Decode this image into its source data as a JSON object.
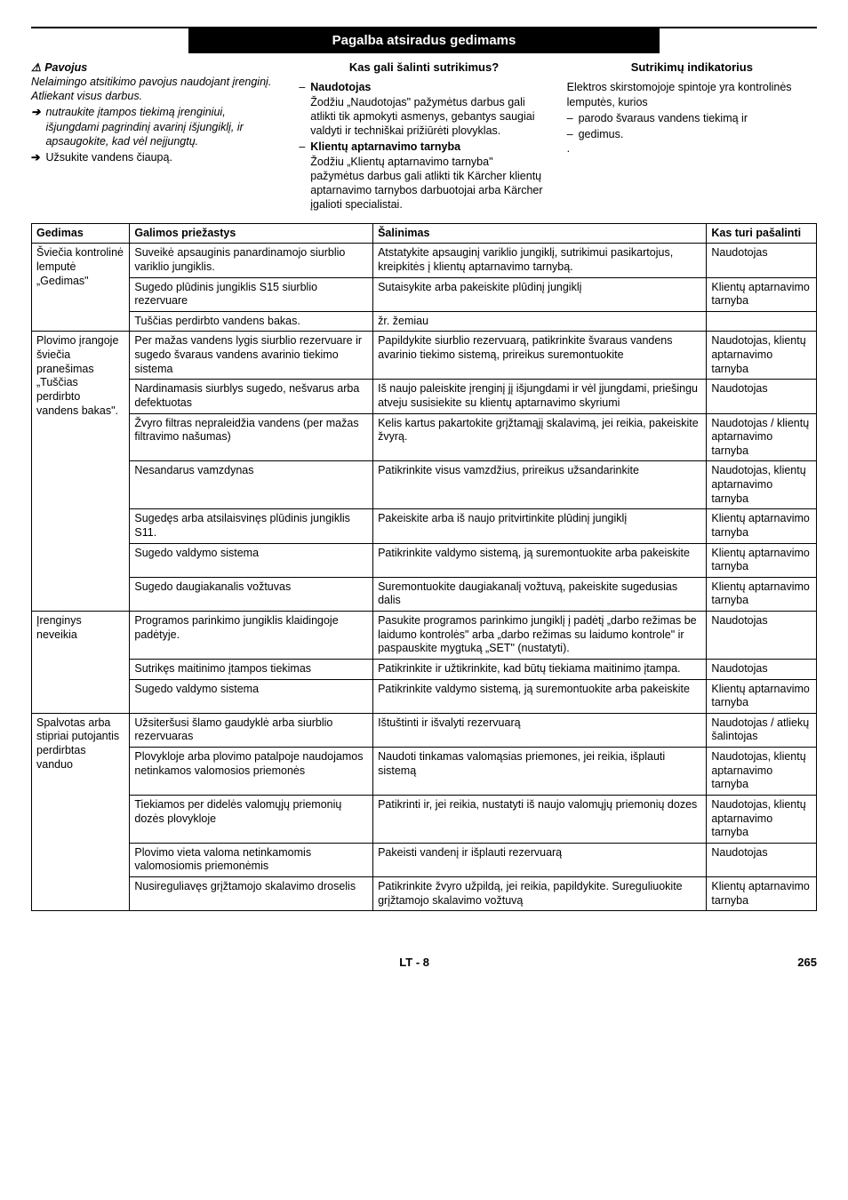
{
  "section_title": "Pagalba atsiradus gedimams",
  "danger": {
    "heading": "Pavojus",
    "intro": "Nelaimingo atsitikimo pavojus naudojant įrenginį. Atliekant visus darbus.",
    "bullets": [
      "nutraukite įtampos tiekimą įrenginiui, išjungdami pagrindinį avarinį išjungiklį, ir apsaugokite, kad vėl neįjungtų.",
      "Užsukite vandens čiaupą."
    ]
  },
  "who": {
    "heading": "Kas gali šalinti sutrikimus?",
    "items": [
      {
        "label": "Naudotojas",
        "text": "Žodžiu „Naudotojas\" pažymėtus darbus gali atlikti tik apmokyti asmenys, gebantys saugiai valdyti ir techniškai prižiūrėti plovyklas."
      },
      {
        "label": "Klientų aptarnavimo tarnyba",
        "text": "Žodžiu „Klientų aptarnavimo tarnyba\" pažymėtus darbus gali atlikti tik Kärcher klientų aptarnavimo tarnybos darbuotojai arba Kärcher įgalioti specialistai."
      }
    ]
  },
  "indicator": {
    "heading": "Sutrikimų indikatorius",
    "intro": "Elektros skirstomojoje spintoje yra kontrolinės lemputės, kurios",
    "bullets": [
      "parodo švaraus vandens tiekimą ir",
      "gedimus."
    ],
    "dot": "."
  },
  "table": {
    "headers": [
      "Gedimas",
      "Galimos priežastys",
      "Šalinimas",
      "Kas turi pašalinti"
    ],
    "g1": {
      "fault": "Šviečia kontrolinė lemputė „Gedimas\"",
      "r1": {
        "cause": "Suveikė apsauginis panardinamojo siurblio variklio jungiklis.",
        "remedy": "Atstatykite apsauginį variklio jungiklį, sutrikimui pasikartojus, kreipkitės į klientų aptarnavimo tarnybą.",
        "who": "Naudotojas"
      },
      "r2": {
        "cause": "Sugedo plūdinis jungiklis S15 siurblio rezervuare",
        "remedy": "Sutaisykite arba pakeiskite plūdinį jungiklį",
        "who": "Klientų aptarnavimo tarnyba"
      },
      "r3": {
        "cause": "Tuščias perdirbto vandens bakas.",
        "remedy": "žr. žemiau",
        "who": ""
      }
    },
    "g2": {
      "fault": "Plovimo įrangoje šviečia pranešimas „Tuščias perdirbto vandens bakas\".",
      "r1": {
        "cause": "Per mažas vandens lygis siurblio rezervuare ir sugedo švaraus vandens avarinio tiekimo sistema",
        "remedy": "Papildykite siurblio rezervuarą, patikrinkite švaraus vandens avarinio tiekimo sistemą, prireikus suremontuokite",
        "who": "Naudotojas, klientų aptarnavimo tarnyba"
      },
      "r2": {
        "cause": "Nardinamasis siurblys sugedo, nešvarus arba defektuotas",
        "remedy": "Iš naujo paleiskite įrenginį jį išjungdami ir vėl įjungdami, priešingu atveju susisiekite su klientų aptarnavimo skyriumi",
        "who": "Naudotojas"
      },
      "r3": {
        "cause": "Žvyro filtras nepraleidžia vandens (per mažas filtravimo našumas)",
        "remedy": "Kelis kartus pakartokite grįžtamąjį skalavimą, jei reikia, pakeiskite žvyrą.",
        "who": "Naudotojas / klientų aptarnavimo tarnyba"
      },
      "r4": {
        "cause": "Nesandarus vamzdynas",
        "remedy": "Patikrinkite visus vamzdžius, prireikus užsandarinkite",
        "who": "Naudotojas, klientų aptarnavimo tarnyba"
      },
      "r5": {
        "cause": "Sugedęs arba atsilaisvinęs plūdinis jungiklis S11.",
        "remedy": "Pakeiskite arba iš naujo pritvirtinkite plūdinį jungiklį",
        "who": "Klientų aptarnavimo tarnyba"
      },
      "r6": {
        "cause": "Sugedo valdymo sistema",
        "remedy": "Patikrinkite valdymo sistemą, ją suremontuokite arba pakeiskite",
        "who": "Klientų aptarnavimo tarnyba"
      },
      "r7": {
        "cause": "Sugedo daugiakanalis vožtuvas",
        "remedy": "Suremontuokite daugiakanalį vožtuvą, pakeiskite sugedusias dalis",
        "who": "Klientų aptarnavimo tarnyba"
      }
    },
    "g3": {
      "fault": "Įrenginys neveikia",
      "r1": {
        "cause": "Programos parinkimo jungiklis klaidingoje padėtyje.",
        "remedy": "Pasukite programos parinkimo jungiklį į padėtį „darbo režimas be laidumo kontrolės\" arba „darbo režimas su laidumo kontrole\" ir paspauskite mygtuką „SET\" (nustatyti).",
        "who": "Naudotojas"
      },
      "r2": {
        "cause": "Sutrikęs maitinimo įtampos tiekimas",
        "remedy": "Patikrinkite ir užtikrinkite, kad būtų tiekiama maitinimo įtampa.",
        "who": "Naudotojas"
      },
      "r3": {
        "cause": "Sugedo valdymo sistema",
        "remedy": "Patikrinkite valdymo sistemą, ją suremontuokite arba pakeiskite",
        "who": "Klientų aptarnavimo tarnyba"
      }
    },
    "g4": {
      "fault": "Spalvotas arba stipriai putojantis perdirbtas vanduo",
      "r1": {
        "cause": "Užsiteršusi šlamo gaudyklė arba siurblio rezervuaras",
        "remedy": "Ištuštinti ir išvalyti rezervuarą",
        "who": "Naudotojas / atliekų šalintojas"
      },
      "r2": {
        "cause": "Plovykloje arba plovimo patalpoje naudojamos netinkamos valomosios priemonės",
        "remedy": "Naudoti tinkamas valomąsias priemones, jei reikia, išplauti sistemą",
        "who": "Naudotojas, klientų aptarnavimo tarnyba"
      },
      "r3": {
        "cause": "Tiekiamos per didelės valomųjų priemonių dozės plovykloje",
        "remedy": "Patikrinti ir, jei reikia, nustatyti iš naujo valomųjų priemonių dozes",
        "who": "Naudotojas, klientų aptarnavimo tarnyba"
      },
      "r4": {
        "cause": "Plovimo vieta valoma netinkamomis valomosiomis priemonėmis",
        "remedy": "Pakeisti vandenį ir išplauti rezervuarą",
        "who": "Naudotojas"
      },
      "r5": {
        "cause": "Nusireguliavęs grįžtamojo skalavimo droselis",
        "remedy": "Patikrinkite žvyro užpildą, jei reikia, papildykite. Sureguliuokite grįžtamojo skalavimo vožtuvą",
        "who": "Klientų aptarnavimo tarnyba"
      }
    }
  },
  "footer": {
    "lang": "LT",
    "page_sep": " - ",
    "page_local": "8",
    "page_global": "265"
  }
}
